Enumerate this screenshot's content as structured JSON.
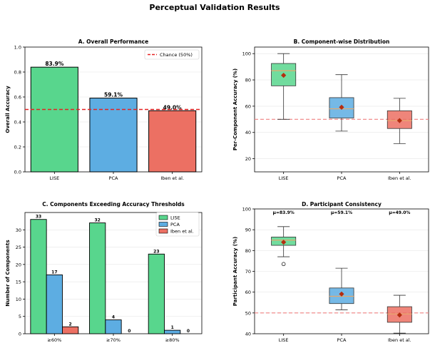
{
  "title": "Perceptual Validation Results",
  "colors": {
    "LISE": "#58d68d",
    "PCA": "#5dade2",
    "Iben et al.": "#ec7063",
    "chance": "#e52222",
    "median": "#e6a96c",
    "mean": "#b42d10"
  },
  "chart_data": [
    {
      "id": "A",
      "type": "bar",
      "title": "A. Overall Performance",
      "ylabel": "Overall Accuracy",
      "ylim": [
        0,
        1.0
      ],
      "yticks": [
        "0.0",
        "0.2",
        "0.4",
        "0.6",
        "0.8",
        "1.0"
      ],
      "categories": [
        "LISE",
        "PCA",
        "Iben et al."
      ],
      "values": [
        0.839,
        0.591,
        0.49
      ],
      "labels": [
        "83.9%",
        "59.1%",
        "49.0%"
      ],
      "reference_line": {
        "y": 0.5,
        "label": "Chance (50%)",
        "style": "dashed"
      },
      "legend": "top-right"
    },
    {
      "id": "B",
      "type": "box",
      "title": "B. Component-wise Distribution",
      "ylabel": "Per-Component Accuracy (%)",
      "ylim": [
        10,
        105
      ],
      "yticks": [
        "20",
        "40",
        "60",
        "80",
        "100"
      ],
      "categories": [
        "LISE",
        "PCA",
        "Iben et al."
      ],
      "boxes": [
        {
          "whisker_low": 50,
          "q1": 75.5,
          "median": 87,
          "q3": 92.5,
          "whisker_high": 100,
          "mean": 83.5
        },
        {
          "whisker_low": 41,
          "q1": 51,
          "median": 58,
          "q3": 66.5,
          "whisker_high": 84,
          "mean": 59.2
        },
        {
          "whisker_low": 31.5,
          "q1": 43,
          "median": 49,
          "q3": 56.5,
          "whisker_high": 66,
          "mean": 49
        }
      ],
      "reference_line": {
        "y": 50,
        "style": "dashed"
      }
    },
    {
      "id": "C",
      "type": "bar",
      "title": "C. Components Exceeding Accuracy Thresholds",
      "ylabel": "Number of Components",
      "ylim": [
        0,
        35
      ],
      "yticks": [
        "0",
        "5",
        "10",
        "15",
        "20",
        "25",
        "30"
      ],
      "categories": [
        "≥60%",
        "≥70%",
        "≥80%"
      ],
      "series": [
        {
          "name": "LISE",
          "values": [
            33,
            32,
            23
          ]
        },
        {
          "name": "PCA",
          "values": [
            17,
            4,
            1
          ]
        },
        {
          "name": "Iben et al.",
          "values": [
            2,
            0,
            0
          ]
        }
      ],
      "legend": "top-right"
    },
    {
      "id": "D",
      "type": "box",
      "title": "D. Participant Consistency",
      "ylabel": "Participant Accuracy (%)",
      "ylim": [
        40,
        100
      ],
      "yticks": [
        "40",
        "50",
        "60",
        "70",
        "80",
        "90",
        "100"
      ],
      "categories": [
        "LISE",
        "PCA",
        "Iben et al."
      ],
      "boxes": [
        {
          "whisker_low": 77,
          "q1": 82.5,
          "median": 85,
          "q3": 86.5,
          "whisker_high": 91.5,
          "mean": 84,
          "outliers": [
            73.5
          ]
        },
        {
          "whisker_low": 51.5,
          "q1": 54.5,
          "median": 58,
          "q3": 62,
          "whisker_high": 71.5,
          "mean": 59.1
        },
        {
          "whisker_low": 40.3,
          "q1": 45.5,
          "median": 49.5,
          "q3": 53,
          "whisker_high": 58.5,
          "mean": 49
        }
      ],
      "annotations": [
        "μ=83.9%",
        "μ=59.1%",
        "μ=49.0%"
      ],
      "reference_line": {
        "y": 50,
        "style": "dashed"
      }
    }
  ]
}
